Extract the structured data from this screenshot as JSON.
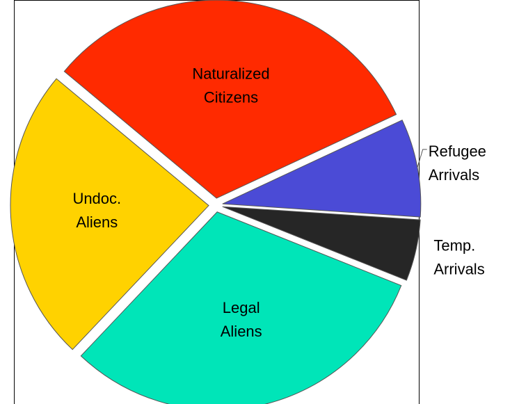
{
  "chart_data": {
    "type": "pie",
    "categories": [
      "Refugee Arrivals",
      "Temp. Arrivals",
      "Legal Aliens",
      "Undoc. Aliens",
      "Naturalized Citizens"
    ],
    "values": [
      8,
      5,
      31,
      24,
      32
    ],
    "colors": [
      "#4b4bd6",
      "#262626",
      "#00e5b8",
      "#ffd200",
      "#ff2a00"
    ],
    "start_angle": -25,
    "direction": "clockwise",
    "exploded": true
  }
}
